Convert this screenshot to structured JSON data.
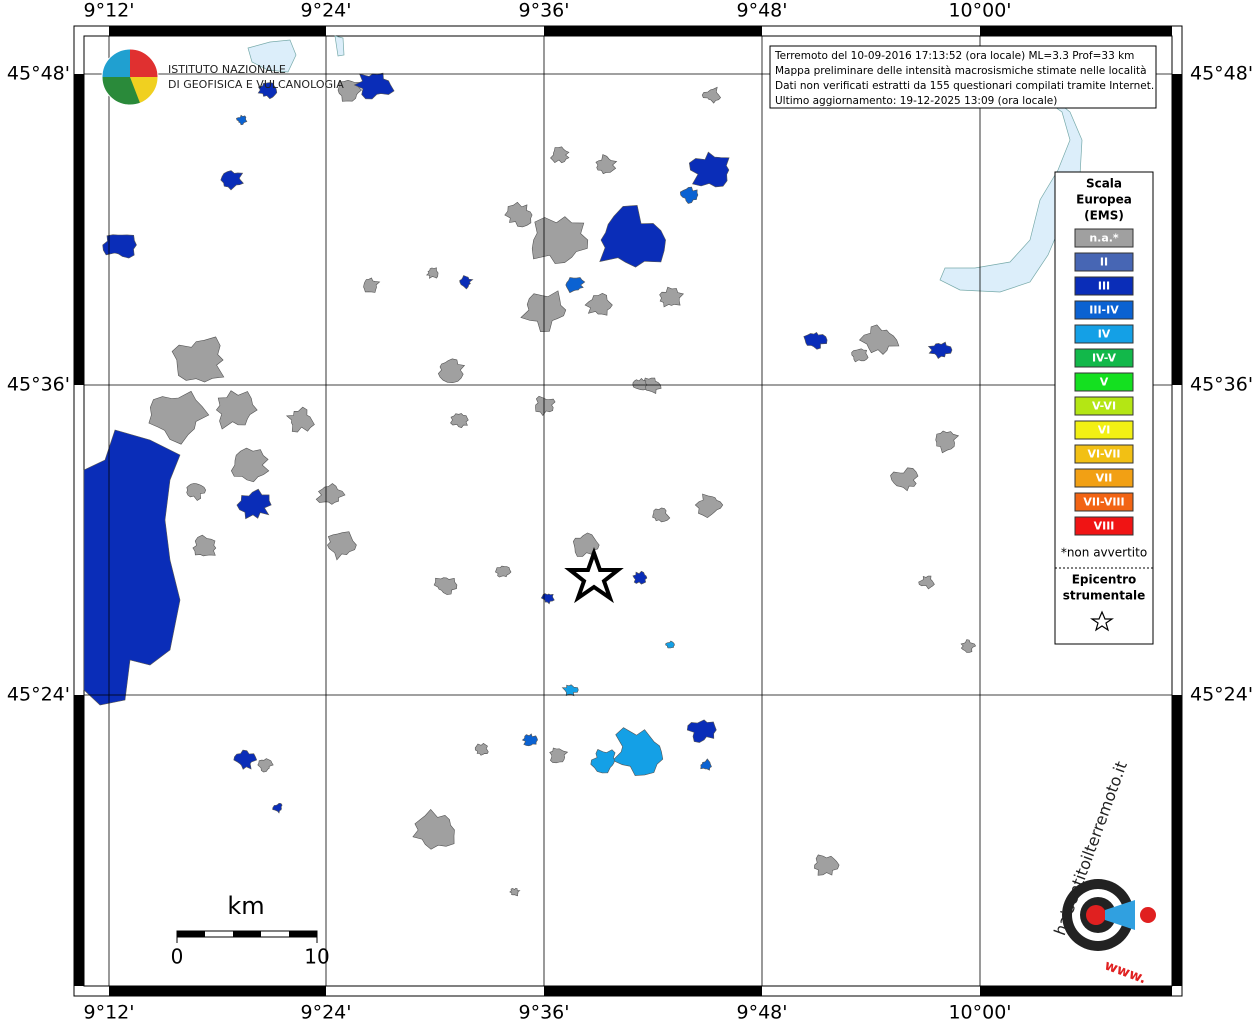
{
  "map": {
    "lon_labels": [
      "9°12'",
      "9°24'",
      "9°36'",
      "9°48'",
      "10°00'"
    ],
    "lat_labels": [
      "45°48'",
      "45°36'",
      "45°24'"
    ],
    "info": [
      "Terremoto del 10-09-2016 17:13:52 (ora locale) ML=3.3 Prof=33 km",
      "Mappa preliminare delle intensità macrosismiche stimate nelle località",
      "Dati non verificati estratti da 155 questionari compilati tramite Internet.",
      "Ultimo aggiornamento: 19-12-2025 13:09 (ora locale)"
    ],
    "legend": {
      "title": [
        "Scala",
        "Europea",
        "(EMS)"
      ],
      "items": [
        {
          "label": "n.a.*",
          "color": "#a0a0a0"
        },
        {
          "label": "II",
          "color": "#4766b4"
        },
        {
          "label": "III",
          "color": "#0a2db8"
        },
        {
          "label": "III-IV",
          "color": "#0b62d2"
        },
        {
          "label": "IV",
          "color": "#14a0e6"
        },
        {
          "label": "IV-V",
          "color": "#12b84a"
        },
        {
          "label": "V",
          "color": "#14e020"
        },
        {
          "label": "V-VI",
          "color": "#b4e614"
        },
        {
          "label": "VI",
          "color": "#f2f014"
        },
        {
          "label": "VI-VII",
          "color": "#f2c014"
        },
        {
          "label": "VII",
          "color": "#f2a014"
        },
        {
          "label": "VII-VIII",
          "color": "#f26414"
        },
        {
          "label": "VIII",
          "color": "#f01414"
        }
      ],
      "note": "*non avvertito",
      "epicenter": [
        "Epicentro",
        "strumentale"
      ]
    },
    "scale": {
      "title": "km",
      "ticks": [
        "0",
        "10"
      ]
    },
    "logo_ingv": [
      "ISTITUTO NAZIONALE",
      "DI GEOFISICA E VULCANOLOGIA"
    ],
    "logo_hsit": {
      "main": "haisentitoilterremoto.it",
      "prefix": "www."
    }
  }
}
